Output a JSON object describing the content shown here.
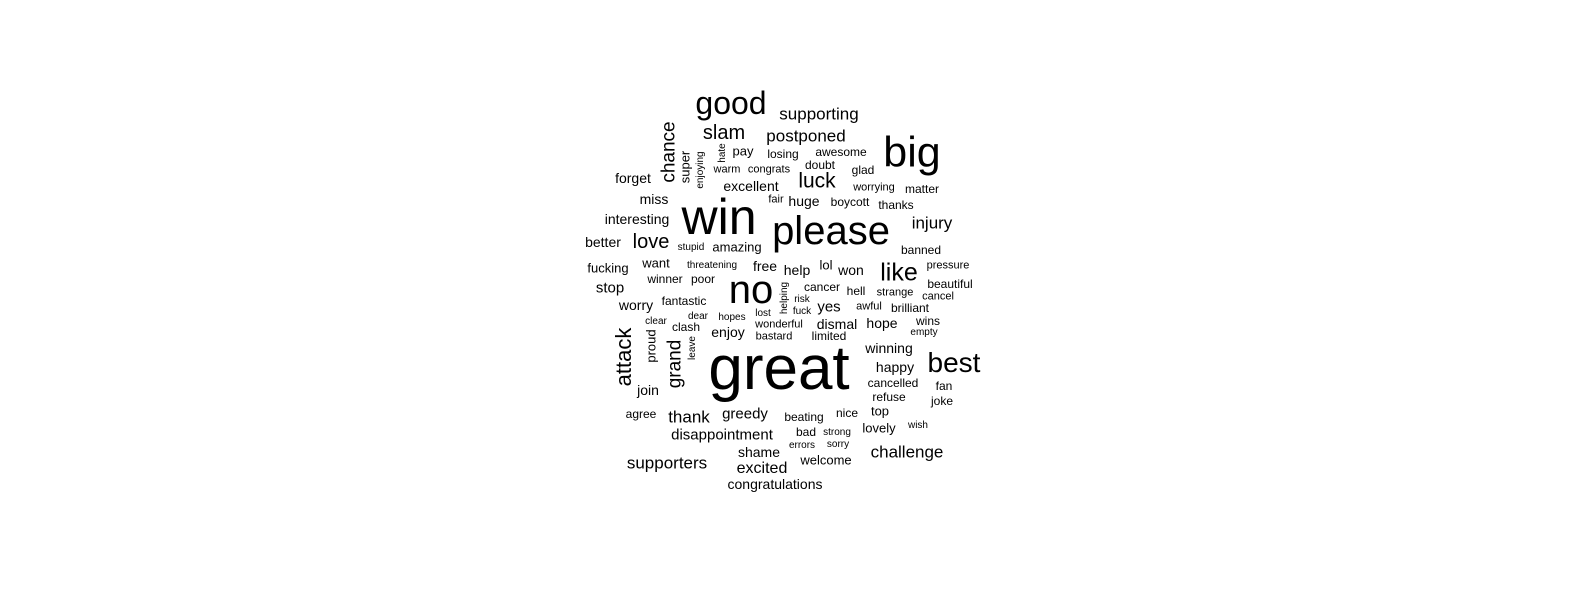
{
  "text_color": "#000000",
  "background_color": "#ffffff",
  "words": {
    "great": "great",
    "win": "win",
    "please": "please",
    "big": "big",
    "no": "no",
    "good": "good",
    "best": "best",
    "like": "like",
    "slam": "slam",
    "luck": "luck",
    "love": "love",
    "supporting": "supporting",
    "postponed": "postponed",
    "chance": "chance",
    "attack": "attack",
    "grand": "grand",
    "injury": "injury",
    "thank": "thank",
    "challenge": "challenge",
    "supporters": "supporters",
    "excited": "excited",
    "disappointment": "disappointment",
    "greedy": "greedy",
    "shame": "shame",
    "congratulations": "congratulations",
    "welcome": "welcome",
    "lovely": "lovely",
    "super": "super",
    "enjoying": "enjoying",
    "hate": "hate",
    "pay": "pay",
    "losing": "losing",
    "awesome": "awesome",
    "doubt": "doubt",
    "glad": "glad",
    "warm": "warm",
    "congrats": "congrats",
    "forget": "forget",
    "excellent": "excellent",
    "worrying": "worrying",
    "matter": "matter",
    "miss": "miss",
    "fair": "fair",
    "huge": "huge",
    "boycott": "boycott",
    "thanks": "thanks",
    "interesting": "interesting",
    "better": "better",
    "stupid": "stupid",
    "amazing": "amazing",
    "banned": "banned",
    "fucking": "fucking",
    "want": "want",
    "threatening": "threatening",
    "free": "free",
    "help": "help",
    "lol": "lol",
    "won": "won",
    "pressure": "pressure",
    "winner": "winner",
    "poor": "poor",
    "beautiful": "beautiful",
    "stop": "stop",
    "helping": "helping",
    "cancer": "cancer",
    "hell": "hell",
    "strange": "strange",
    "cancel": "cancel",
    "worry": "worry",
    "fantastic": "fantastic",
    "risk": "risk",
    "yes": "yes",
    "awful": "awful",
    "brilliant": "brilliant",
    "dear": "dear",
    "hopes": "hopes",
    "lost": "lost",
    "fuck": "fuck",
    "clear": "clear",
    "clash": "clash",
    "wonderful": "wonderful",
    "dismal": "dismal",
    "hope": "hope",
    "wins": "wins",
    "proud": "proud",
    "leave": "leave",
    "enjoy": "enjoy",
    "bastard": "bastard",
    "limited": "limited",
    "empty": "empty",
    "winning": "winning",
    "happy": "happy",
    "join": "join",
    "cancelled": "cancelled",
    "fan": "fan",
    "refuse": "refuse",
    "joke": "joke",
    "agree": "agree",
    "beating": "beating",
    "nice": "nice",
    "top": "top",
    "bad": "bad",
    "strong": "strong",
    "wish": "wish",
    "errors": "errors",
    "sorry": "sorry"
  }
}
